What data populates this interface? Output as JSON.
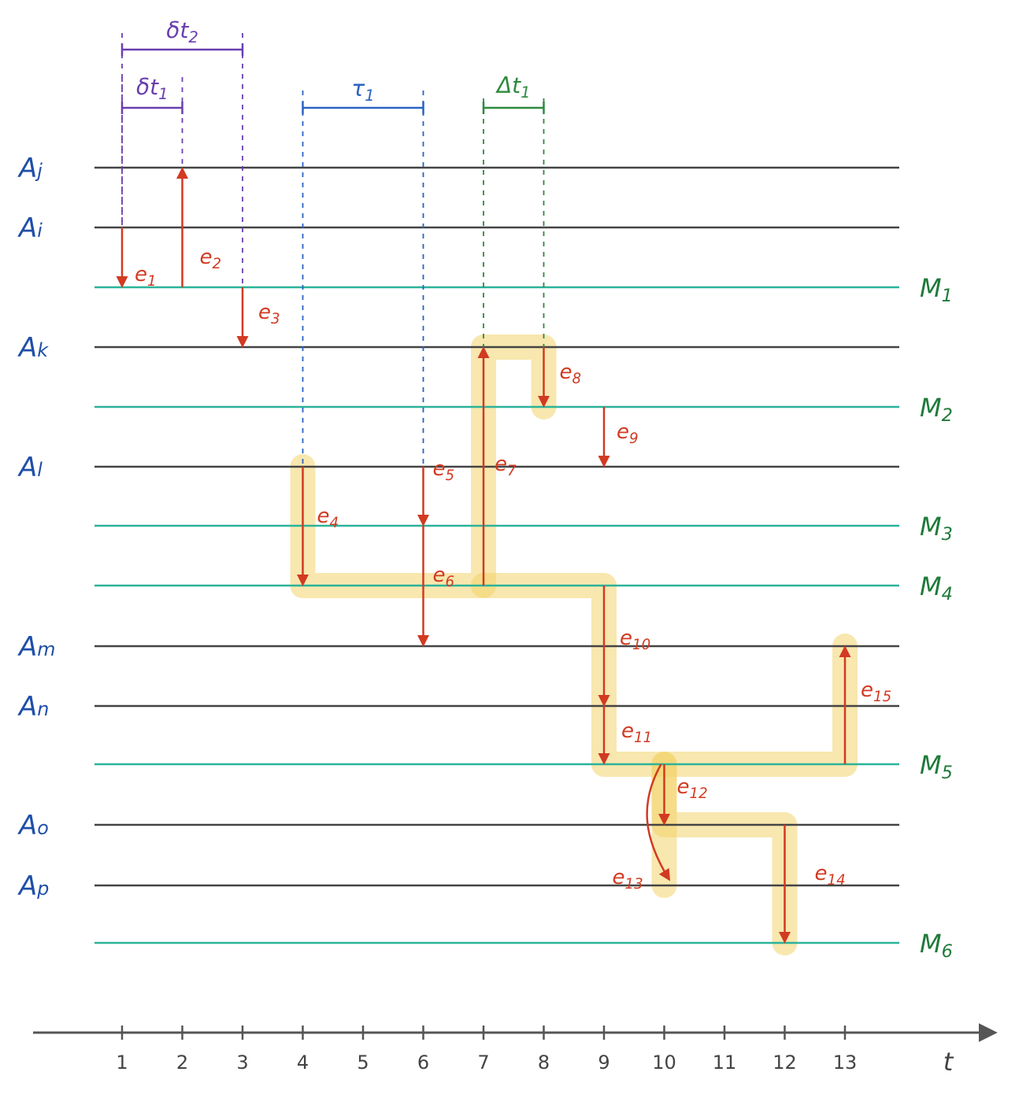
{
  "colors": {
    "node_line": "#444444",
    "mediator_line": "#2bb39a",
    "edge": "#d23a22",
    "highlight": "#f2d46b",
    "node_label": "#1f4fa8",
    "mediator_label": "#1f7a3a",
    "purple": "#6a3fb0",
    "blue": "#2a62c4",
    "green": "#2e8a3e"
  },
  "lines": [
    {
      "id": "Aj",
      "label": "Aj",
      "kind": "node"
    },
    {
      "id": "Ai",
      "label": "Ai",
      "kind": "node"
    },
    {
      "id": "M1",
      "label": "M1",
      "kind": "mediator"
    },
    {
      "id": "Ak",
      "label": "Ak",
      "kind": "node"
    },
    {
      "id": "M2",
      "label": "M2",
      "kind": "mediator"
    },
    {
      "id": "Al",
      "label": "Al",
      "kind": "node"
    },
    {
      "id": "M3",
      "label": "M3",
      "kind": "mediator"
    },
    {
      "id": "M4",
      "label": "M4",
      "kind": "mediator"
    },
    {
      "id": "Am",
      "label": "Am",
      "kind": "node"
    },
    {
      "id": "An",
      "label": "An",
      "kind": "node"
    },
    {
      "id": "M5",
      "label": "M5",
      "kind": "mediator"
    },
    {
      "id": "Ao",
      "label": "Ao",
      "kind": "node"
    },
    {
      "id": "Ap",
      "label": "Ap",
      "kind": "node"
    },
    {
      "id": "M6",
      "label": "M6",
      "kind": "mediator"
    }
  ],
  "axis": {
    "label": "t",
    "ticks": [
      "1",
      "2",
      "3",
      "4",
      "5",
      "6",
      "7",
      "8",
      "9",
      "10",
      "11",
      "12",
      "13"
    ]
  },
  "edges": [
    {
      "label": "e1",
      "t": 1,
      "from": "Ai",
      "to": "M1"
    },
    {
      "label": "e2",
      "t": 2,
      "from": "M1",
      "to": "Aj"
    },
    {
      "label": "e3",
      "t": 3,
      "from": "M1",
      "to": "Ak"
    },
    {
      "label": "e4",
      "t": 4,
      "from": "Al",
      "to": "M4"
    },
    {
      "label": "e5",
      "t": 6,
      "from": "Al",
      "to": "M3"
    },
    {
      "label": "e6",
      "t": 6,
      "from": "M3",
      "to": "Am"
    },
    {
      "label": "e7",
      "t": 7,
      "from": "M4",
      "to": "Ak"
    },
    {
      "label": "e8",
      "t": 8,
      "from": "Ak",
      "to": "M2"
    },
    {
      "label": "e9",
      "t": 9,
      "from": "M2",
      "to": "Al"
    },
    {
      "label": "e10",
      "t": 9,
      "from": "M4",
      "to": "An"
    },
    {
      "label": "e11",
      "t": 9,
      "from": "An",
      "to": "M5"
    },
    {
      "label": "e12",
      "t": 10,
      "from": "M5",
      "to": "Ao"
    },
    {
      "label": "e13",
      "t": 10,
      "from": "M5",
      "to": "Ap"
    },
    {
      "label": "e14",
      "t": 12,
      "from": "Ao",
      "to": "M6"
    },
    {
      "label": "e15",
      "t": 13,
      "from": "M5",
      "to": "Am"
    }
  ],
  "intervals": [
    {
      "label": "δt2",
      "from": 1,
      "to": 3,
      "color": "purple"
    },
    {
      "label": "δt1",
      "from": 1,
      "to": 2,
      "color": "purple"
    },
    {
      "label": "τ1",
      "from": 4,
      "to": 6,
      "color": "blue"
    },
    {
      "label": "Δt1",
      "from": 7,
      "to": 8,
      "color": "green"
    }
  ],
  "highlight_path": [
    [
      4,
      "Al"
    ],
    [
      4,
      "M4"
    ],
    [
      7,
      "M4"
    ],
    [
      7,
      "Ak"
    ],
    [
      8,
      "Ak"
    ],
    [
      8,
      "M2"
    ]
  ],
  "highlight_path_2": [
    [
      7,
      "M4"
    ],
    [
      9,
      "M4"
    ],
    [
      9,
      "M5"
    ],
    [
      13,
      "M5"
    ],
    [
      13,
      "Am"
    ]
  ],
  "highlight_path_3": [
    [
      10,
      "M5"
    ],
    [
      10,
      "Ao"
    ],
    [
      12,
      "Ao"
    ],
    [
      12,
      "M6"
    ]
  ],
  "highlight_path_4": [
    [
      10,
      "M5"
    ],
    [
      10,
      "Ap"
    ]
  ]
}
